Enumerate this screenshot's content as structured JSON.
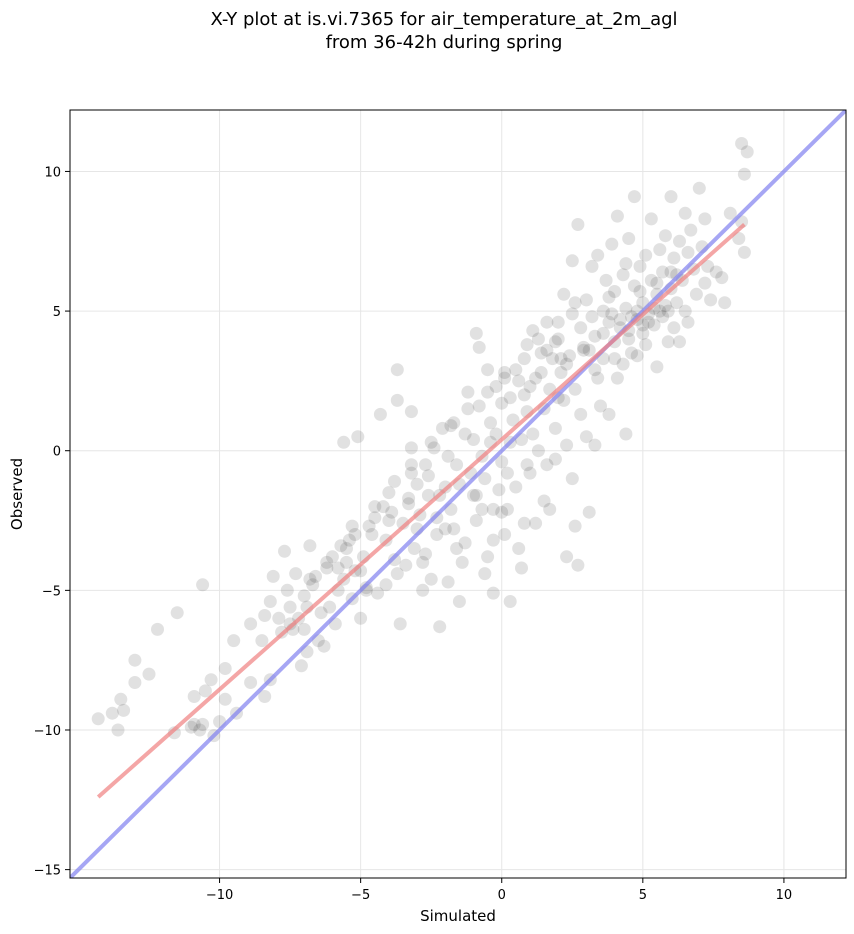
{
  "chart_data": {
    "type": "scatter",
    "title_line1": "X-Y plot at is.vi.7365 for air_temperature_at_2m_agl",
    "title_line2": "from 36-42h during spring",
    "xlabel": "Simulated",
    "ylabel": "Observed",
    "xlim": [
      -15.3,
      12.2
    ],
    "ylim": [
      -15.3,
      12.2
    ],
    "xticks": [
      -10,
      -5,
      0,
      5,
      10
    ],
    "yticks": [
      -15,
      -10,
      -5,
      0,
      5,
      10
    ],
    "xtick_labels": [
      "−10",
      "−5",
      "0",
      "5",
      "10"
    ],
    "ytick_labels": [
      "−15",
      "−10",
      "−5",
      "0",
      "5",
      "10"
    ],
    "grid": true,
    "point_color": "#333333",
    "points": [
      [
        -14.3,
        -9.6
      ],
      [
        -13.8,
        -9.4
      ],
      [
        -13.5,
        -8.9
      ],
      [
        -13.6,
        -10.0
      ],
      [
        -13.4,
        -9.3
      ],
      [
        -13.0,
        -8.3
      ],
      [
        -13.0,
        -7.5
      ],
      [
        -12.2,
        -6.4
      ],
      [
        -11.5,
        -5.8
      ],
      [
        -11.6,
        -10.1
      ],
      [
        -11.0,
        -9.9
      ],
      [
        -10.9,
        -9.8
      ],
      [
        -10.7,
        -10.0
      ],
      [
        -10.6,
        -9.8
      ],
      [
        -10.6,
        -4.8
      ],
      [
        -10.5,
        -8.6
      ],
      [
        -10.3,
        -8.2
      ],
      [
        -10.2,
        -10.2
      ],
      [
        -10.0,
        -9.7
      ],
      [
        -9.8,
        -8.9
      ],
      [
        -9.5,
        -6.8
      ],
      [
        -9.4,
        -9.4
      ],
      [
        -8.9,
        -6.2
      ],
      [
        -8.9,
        -8.3
      ],
      [
        -8.4,
        -8.8
      ],
      [
        -8.4,
        -5.9
      ],
      [
        -8.2,
        -5.4
      ],
      [
        -8.1,
        -4.5
      ],
      [
        -8.2,
        -8.2
      ],
      [
        -7.9,
        -6.0
      ],
      [
        -7.7,
        -3.6
      ],
      [
        -7.6,
        -5.0
      ],
      [
        -7.5,
        -6.2
      ],
      [
        -7.4,
        -6.4
      ],
      [
        -7.3,
        -4.4
      ],
      [
        -7.2,
        -6.0
      ],
      [
        -7.1,
        -7.7
      ],
      [
        -7.0,
        -6.4
      ],
      [
        -6.9,
        -7.2
      ],
      [
        -6.9,
        -5.6
      ],
      [
        -6.7,
        -4.8
      ],
      [
        -6.6,
        -4.5
      ],
      [
        -6.8,
        -3.4
      ],
      [
        -6.4,
        -5.8
      ],
      [
        -6.3,
        -7.0
      ],
      [
        -6.2,
        -4.0
      ],
      [
        -6.1,
        -5.6
      ],
      [
        -5.9,
        -6.2
      ],
      [
        -5.8,
        -4.2
      ],
      [
        -5.7,
        -3.4
      ],
      [
        -5.6,
        -4.6
      ],
      [
        -5.5,
        -4.0
      ],
      [
        -5.4,
        -3.2
      ],
      [
        -5.3,
        -5.3
      ],
      [
        -5.3,
        -2.7
      ],
      [
        -5.2,
        -4.3
      ],
      [
        -5.6,
        0.3
      ],
      [
        -5.1,
        0.5
      ],
      [
        -5.0,
        -6.0
      ],
      [
        -4.9,
        -3.8
      ],
      [
        -4.8,
        -4.9
      ],
      [
        -4.7,
        -2.7
      ],
      [
        -4.5,
        -2.4
      ],
      [
        -4.4,
        -5.1
      ],
      [
        -4.3,
        1.3
      ],
      [
        -4.2,
        -2.0
      ],
      [
        -4.1,
        -4.8
      ],
      [
        -4.1,
        -3.2
      ],
      [
        -4.0,
        -1.5
      ],
      [
        -3.9,
        -2.2
      ],
      [
        -3.8,
        -3.9
      ],
      [
        -3.7,
        2.9
      ],
      [
        -3.7,
        1.8
      ],
      [
        -3.6,
        -6.2
      ],
      [
        -3.5,
        -2.6
      ],
      [
        -3.4,
        -4.1
      ],
      [
        -3.3,
        -1.9
      ],
      [
        -3.2,
        0.1
      ],
      [
        -3.2,
        -0.8
      ],
      [
        -3.1,
        -3.5
      ],
      [
        -3.0,
        -1.2
      ],
      [
        -3.2,
        1.4
      ],
      [
        -2.9,
        -2.3
      ],
      [
        -2.8,
        -5.0
      ],
      [
        -2.7,
        -0.5
      ],
      [
        -2.6,
        -1.6
      ],
      [
        -2.5,
        -4.6
      ],
      [
        -2.4,
        0.1
      ],
      [
        -2.3,
        -2.4
      ],
      [
        -2.3,
        -3.0
      ],
      [
        -2.2,
        -6.3
      ],
      [
        -2.1,
        0.8
      ],
      [
        -2.0,
        -1.3
      ],
      [
        -1.9,
        -4.7
      ],
      [
        -1.8,
        -2.1
      ],
      [
        -1.7,
        1.0
      ],
      [
        -1.6,
        -0.5
      ],
      [
        -1.5,
        -5.4
      ],
      [
        -1.4,
        -4.0
      ],
      [
        -1.3,
        0.6
      ],
      [
        -1.3,
        -3.3
      ],
      [
        -1.2,
        2.1
      ],
      [
        -1.1,
        -0.8
      ],
      [
        -1.0,
        -1.6
      ],
      [
        -0.9,
        4.2
      ],
      [
        -0.9,
        -2.5
      ],
      [
        -0.8,
        3.7
      ],
      [
        -0.8,
        1.6
      ],
      [
        -0.7,
        -0.2
      ],
      [
        -0.6,
        -4.4
      ],
      [
        -0.6,
        -1.0
      ],
      [
        -0.5,
        -3.8
      ],
      [
        -0.5,
        2.9
      ],
      [
        -0.4,
        1.0
      ],
      [
        -0.3,
        -2.1
      ],
      [
        -0.3,
        -5.1
      ],
      [
        -0.2,
        0.6
      ],
      [
        -0.2,
        2.3
      ],
      [
        -0.1,
        -1.4
      ],
      [
        0.0,
        -0.4
      ],
      [
        0.0,
        1.7
      ],
      [
        0.1,
        -3.0
      ],
      [
        0.1,
        2.8
      ],
      [
        0.2,
        -2.1
      ],
      [
        0.3,
        0.3
      ],
      [
        0.3,
        -5.4
      ],
      [
        0.4,
        1.1
      ],
      [
        0.5,
        -1.3
      ],
      [
        0.5,
        2.9
      ],
      [
        0.6,
        -3.5
      ],
      [
        0.7,
        0.4
      ],
      [
        0.7,
        -4.2
      ],
      [
        0.8,
        2.0
      ],
      [
        0.8,
        -2.6
      ],
      [
        0.9,
        3.8
      ],
      [
        0.9,
        1.4
      ],
      [
        1.0,
        -0.8
      ],
      [
        1.1,
        4.3
      ],
      [
        1.2,
        2.6
      ],
      [
        1.2,
        -2.6
      ],
      [
        1.3,
        0.0
      ],
      [
        1.4,
        3.5
      ],
      [
        1.5,
        1.5
      ],
      [
        1.6,
        -0.5
      ],
      [
        1.6,
        4.6
      ],
      [
        1.7,
        2.2
      ],
      [
        1.8,
        3.3
      ],
      [
        1.9,
        0.8
      ],
      [
        1.9,
        -0.3
      ],
      [
        2.0,
        4.0
      ],
      [
        2.1,
        2.8
      ],
      [
        2.2,
        1.8
      ],
      [
        2.2,
        5.6
      ],
      [
        2.3,
        -3.8
      ],
      [
        2.3,
        0.2
      ],
      [
        2.4,
        3.4
      ],
      [
        2.5,
        6.8
      ],
      [
        2.5,
        4.9
      ],
      [
        2.6,
        -2.7
      ],
      [
        2.6,
        2.2
      ],
      [
        2.7,
        8.1
      ],
      [
        2.7,
        -4.1
      ],
      [
        2.8,
        1.3
      ],
      [
        2.9,
        3.7
      ],
      [
        3.0,
        5.4
      ],
      [
        3.0,
        0.5
      ],
      [
        3.1,
        -2.2
      ],
      [
        3.2,
        6.6
      ],
      [
        3.3,
        2.9
      ],
      [
        3.3,
        4.1
      ],
      [
        3.4,
        7.0
      ],
      [
        3.5,
        1.6
      ],
      [
        3.6,
        5.0
      ],
      [
        3.6,
        3.3
      ],
      [
        3.7,
        6.1
      ],
      [
        3.8,
        4.6
      ],
      [
        3.8,
        1.3
      ],
      [
        3.9,
        7.4
      ],
      [
        4.0,
        3.9
      ],
      [
        4.0,
        5.7
      ],
      [
        4.1,
        8.4
      ],
      [
        4.1,
        2.6
      ],
      [
        4.2,
        4.4
      ],
      [
        4.3,
        6.3
      ],
      [
        4.3,
        3.1
      ],
      [
        4.4,
        0.6
      ],
      [
        4.4,
        5.1
      ],
      [
        4.5,
        7.6
      ],
      [
        4.5,
        4.0
      ],
      [
        4.6,
        3.5
      ],
      [
        4.7,
        9.1
      ],
      [
        4.7,
        5.9
      ],
      [
        4.8,
        4.7
      ],
      [
        4.8,
        3.4
      ],
      [
        4.9,
        6.6
      ],
      [
        5.0,
        4.2
      ],
      [
        5.0,
        5.3
      ],
      [
        5.1,
        7.0
      ],
      [
        5.1,
        3.8
      ],
      [
        5.2,
        4.9
      ],
      [
        5.3,
        8.3
      ],
      [
        5.3,
        6.1
      ],
      [
        5.4,
        4.5
      ],
      [
        5.5,
        5.6
      ],
      [
        5.5,
        3.0
      ],
      [
        5.6,
        7.2
      ],
      [
        5.7,
        4.8
      ],
      [
        5.7,
        6.4
      ],
      [
        5.8,
        5.2
      ],
      [
        5.8,
        7.7
      ],
      [
        5.9,
        3.9
      ],
      [
        6.0,
        9.1
      ],
      [
        6.0,
        5.8
      ],
      [
        6.1,
        4.4
      ],
      [
        6.1,
        6.9
      ],
      [
        6.2,
        5.3
      ],
      [
        6.3,
        7.5
      ],
      [
        6.3,
        3.9
      ],
      [
        6.4,
        6.1
      ],
      [
        6.5,
        8.5
      ],
      [
        6.5,
        5.0
      ],
      [
        6.6,
        4.6
      ],
      [
        6.7,
        7.9
      ],
      [
        6.8,
        6.5
      ],
      [
        6.9,
        5.6
      ],
      [
        7.0,
        9.4
      ],
      [
        7.1,
        7.3
      ],
      [
        7.2,
        6.0
      ],
      [
        7.2,
        8.3
      ],
      [
        7.4,
        5.4
      ],
      [
        7.6,
        6.4
      ],
      [
        7.8,
        6.2
      ],
      [
        7.9,
        5.3
      ],
      [
        8.1,
        8.5
      ],
      [
        8.4,
        7.6
      ],
      [
        8.5,
        11.0
      ],
      [
        8.6,
        7.1
      ],
      [
        8.7,
        10.7
      ],
      [
        8.6,
        9.9
      ],
      [
        8.5,
        8.2
      ],
      [
        -6.2,
        -4.2
      ],
      [
        -5.5,
        -3.5
      ],
      [
        -4.6,
        -3.0
      ],
      [
        -3.3,
        -1.7
      ],
      [
        -2.6,
        -0.9
      ],
      [
        -1.9,
        -0.2
      ],
      [
        -1.0,
        0.4
      ],
      [
        0.6,
        2.5
      ],
      [
        1.4,
        2.8
      ],
      [
        1.9,
        3.9
      ],
      [
        2.3,
        3.1
      ],
      [
        2.8,
        4.4
      ],
      [
        3.4,
        2.6
      ],
      [
        3.9,
        4.9
      ],
      [
        4.6,
        4.8
      ],
      [
        5.2,
        4.6
      ],
      [
        5.6,
        5.0
      ],
      [
        6.2,
        6.3
      ],
      [
        4.2,
        4.7
      ],
      [
        4.5,
        4.3
      ],
      [
        4.8,
        5.0
      ],
      [
        5.0,
        4.5
      ],
      [
        5.4,
        5.1
      ],
      [
        3.6,
        4.2
      ],
      [
        2.9,
        3.6
      ],
      [
        2.1,
        3.3
      ],
      [
        1.6,
        3.6
      ],
      [
        1.0,
        2.3
      ],
      [
        0.3,
        1.9
      ],
      [
        -0.4,
        0.3
      ],
      [
        -1.5,
        -1.2
      ],
      [
        -2.2,
        -1.6
      ],
      [
        -3.0,
        -2.8
      ],
      [
        -4.0,
        -2.5
      ],
      [
        -5.0,
        -4.3
      ],
      [
        -7.0,
        -5.2
      ],
      [
        -8.5,
        -6.8
      ],
      [
        -9.8,
        -7.8
      ],
      [
        -10.9,
        -8.8
      ],
      [
        -12.5,
        -8.0
      ],
      [
        -7.8,
        -6.5
      ],
      [
        -6.5,
        -6.8
      ],
      [
        -5.8,
        -5.0
      ],
      [
        -4.8,
        -5.0
      ],
      [
        -3.7,
        -4.4
      ],
      [
        -2.7,
        -3.7
      ],
      [
        -1.7,
        -2.8
      ],
      [
        -0.7,
        -2.1
      ],
      [
        0.2,
        -0.8
      ],
      [
        1.1,
        0.6
      ],
      [
        2.0,
        1.9
      ],
      [
        3.1,
        3.6
      ],
      [
        4.0,
        3.3
      ],
      [
        5.5,
        6.0
      ],
      [
        6.6,
        7.1
      ],
      [
        7.3,
        6.6
      ],
      [
        6.0,
        6.4
      ],
      [
        5.9,
        5.0
      ],
      [
        4.9,
        5.7
      ],
      [
        4.4,
        6.7
      ],
      [
        3.8,
        5.5
      ],
      [
        3.2,
        4.8
      ],
      [
        2.6,
        5.3
      ],
      [
        2.0,
        4.6
      ],
      [
        1.3,
        4.0
      ],
      [
        0.8,
        3.3
      ],
      [
        0.1,
        2.6
      ],
      [
        -0.5,
        2.1
      ],
      [
        -1.2,
        1.5
      ],
      [
        -1.8,
        0.9
      ],
      [
        -2.5,
        0.3
      ],
      [
        -3.2,
        -0.5
      ],
      [
        -3.8,
        -1.1
      ],
      [
        -4.5,
        -2.0
      ],
      [
        -5.2,
        -3.0
      ],
      [
        -6.0,
        -3.8
      ],
      [
        -6.8,
        -4.6
      ],
      [
        -7.5,
        -5.6
      ],
      [
        -2.0,
        -2.8
      ],
      [
        -0.9,
        -1.6
      ],
      [
        0.0,
        -2.2
      ],
      [
        1.5,
        -1.8
      ],
      [
        2.5,
        -1.0
      ],
      [
        3.3,
        0.2
      ],
      [
        1.7,
        -2.1
      ],
      [
        0.9,
        -0.5
      ],
      [
        -1.6,
        -3.5
      ],
      [
        -2.8,
        -4.0
      ],
      [
        -0.3,
        -3.2
      ]
    ],
    "regression_fit": {
      "name": "",
      "x": [
        -14.3,
        8.6
      ],
      "y": [
        -12.4,
        8.1
      ],
      "color": "#f08080"
    },
    "one_to_one_line": {
      "name": "",
      "x": [
        -15.3,
        12.2
      ],
      "y": [
        -15.3,
        12.2
      ],
      "color": "#8080f0"
    }
  }
}
